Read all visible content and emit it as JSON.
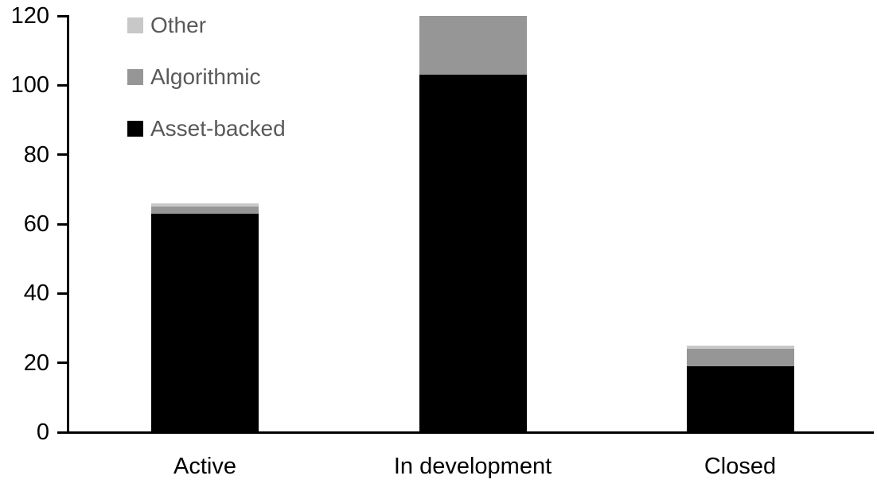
{
  "chart_data": {
    "type": "bar",
    "stacked": true,
    "title": "",
    "xlabel": "",
    "ylabel": "",
    "categories": [
      "Active",
      "In development",
      "Closed"
    ],
    "series": [
      {
        "name": "Asset-backed",
        "color": "#000000",
        "values": [
          63,
          103,
          19
        ]
      },
      {
        "name": "Algorithmic",
        "color": "#969696",
        "values": [
          2,
          17,
          5
        ]
      },
      {
        "name": "Other",
        "color": "#c8c8c8",
        "values": [
          1,
          0,
          1
        ]
      }
    ],
    "totals": [
      66,
      120,
      25
    ],
    "ylim": [
      0,
      120
    ],
    "yticks": [
      0,
      20,
      40,
      60,
      80,
      100,
      120
    ],
    "grid": false,
    "legend_position": "top-left",
    "legend_order": [
      "Other",
      "Algorithmic",
      "Asset-backed"
    ],
    "colors": {
      "axis": "#000000",
      "tick_label": "#000000",
      "category_label": "#000000",
      "legend_text": "#595959",
      "background": "#ffffff"
    }
  }
}
